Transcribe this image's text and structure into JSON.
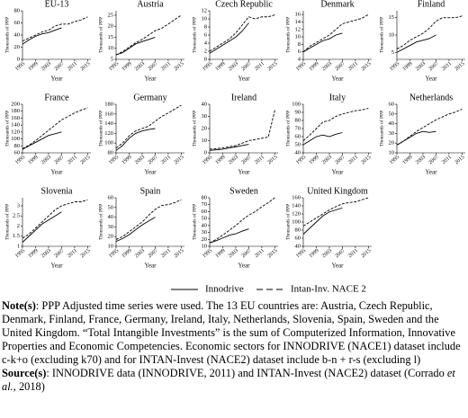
{
  "chart_data": [
    {
      "type": "line",
      "title": "EU-13",
      "ylabel": "Thousands of PPP",
      "xlabel": "Year",
      "x": [
        1995,
        1997,
        1999,
        2001,
        2003,
        2005,
        2007,
        2009,
        2011,
        2013,
        2015
      ],
      "xlim": [
        1995,
        2016
      ],
      "xticks": [
        1995,
        1999,
        2003,
        2007,
        2011,
        2015
      ],
      "ylim": [
        0,
        80
      ],
      "yticks": [
        0,
        20,
        40,
        60,
        80
      ],
      "series": [
        {
          "style": "solid",
          "color": "#000000",
          "values": [
            25,
            32,
            38,
            42,
            44,
            48,
            52,
            null,
            null,
            null,
            null
          ]
        },
        {
          "style": "dashed",
          "color": "#000000",
          "values": [
            30,
            35,
            40,
            45,
            48,
            55,
            58,
            58,
            62,
            65,
            70
          ]
        }
      ]
    },
    {
      "type": "line",
      "title": "Austria",
      "ylabel": "Thousands of PPP",
      "xlabel": "Year",
      "x": [
        1995,
        1997,
        1999,
        2001,
        2003,
        2005,
        2007,
        2009,
        2011,
        2013,
        2015
      ],
      "xlim": [
        1995,
        2016
      ],
      "xticks": [
        1995,
        1999,
        2003,
        2007,
        2011,
        2015
      ],
      "ylim": [
        5,
        27
      ],
      "yticks": [
        5,
        10,
        15,
        20,
        25
      ],
      "series": [
        {
          "style": "solid",
          "color": "#000000",
          "values": [
            7,
            8,
            10,
            12,
            13,
            14,
            15,
            null,
            null,
            null,
            null
          ]
        },
        {
          "style": "dashed",
          "color": "#000000",
          "values": [
            7,
            8.5,
            10.5,
            12.5,
            14,
            16,
            18,
            19,
            21,
            23,
            25
          ]
        }
      ]
    },
    {
      "type": "line",
      "title": "Czech Republic",
      "ylabel": "Thousands of PPP",
      "xlabel": "Year",
      "x": [
        1995,
        1997,
        1999,
        2001,
        2003,
        2005,
        2007,
        2009,
        2011,
        2013,
        2015
      ],
      "xlim": [
        1995,
        2016
      ],
      "xticks": [
        1995,
        1999,
        2003,
        2007,
        2011,
        2015
      ],
      "ylim": [
        0,
        12
      ],
      "yticks": [
        0,
        2,
        4,
        6,
        8,
        10,
        12
      ],
      "series": [
        {
          "style": "solid",
          "color": "#000000",
          "values": [
            1.5,
            2.5,
            3.5,
            4.5,
            5.5,
            7,
            9,
            null,
            null,
            null,
            null
          ]
        },
        {
          "style": "dashed",
          "color": "#000000",
          "values": [
            2,
            3,
            4,
            5,
            6.5,
            8.5,
            10.5,
            10,
            10.5,
            10.5,
            11
          ]
        }
      ]
    },
    {
      "type": "line",
      "title": "Denmark",
      "ylabel": "Thousands of PPP",
      "xlabel": "Year",
      "x": [
        1995,
        1997,
        1999,
        2001,
        2003,
        2005,
        2007,
        2009,
        2011,
        2013,
        2015
      ],
      "xlim": [
        1995,
        2016
      ],
      "xticks": [
        1995,
        1999,
        2003,
        2007,
        2011,
        2015
      ],
      "ylim": [
        4,
        17
      ],
      "yticks": [
        4,
        6,
        8,
        10,
        12,
        14,
        16
      ],
      "series": [
        {
          "style": "solid",
          "color": "#000000",
          "values": [
            6,
            7,
            8,
            9,
            9.5,
            10.5,
            11,
            null,
            null,
            null,
            null
          ]
        },
        {
          "style": "dashed",
          "color": "#000000",
          "values": [
            6,
            7.5,
            8.5,
            9.5,
            10.5,
            12,
            13.5,
            14,
            14.5,
            15,
            16
          ]
        }
      ]
    },
    {
      "type": "line",
      "title": "Finland",
      "ylabel": "Thousands of PPP",
      "xlabel": "Year",
      "x": [
        1995,
        1997,
        1999,
        2001,
        2003,
        2005,
        2007,
        2009,
        2011,
        2013,
        2015
      ],
      "xlim": [
        1995,
        2016
      ],
      "xticks": [
        1995,
        1999,
        2003,
        2007,
        2011,
        2015
      ],
      "ylim": [
        3,
        17
      ],
      "yticks": [
        5,
        10,
        15
      ],
      "series": [
        {
          "style": "solid",
          "color": "#000000",
          "values": [
            5,
            6,
            7,
            8,
            8.5,
            9,
            10,
            null,
            null,
            null,
            null
          ]
        },
        {
          "style": "dashed",
          "color": "#000000",
          "values": [
            6,
            7,
            8.5,
            9.5,
            10.5,
            12,
            14,
            15,
            15,
            15,
            15.5
          ]
        }
      ]
    },
    {
      "type": "line",
      "title": "France",
      "ylabel": "Thousands of PPP",
      "xlabel": "Year",
      "x": [
        1995,
        1997,
        1999,
        2001,
        2003,
        2005,
        2007,
        2009,
        2011,
        2013,
        2015
      ],
      "xlim": [
        1995,
        2016
      ],
      "xticks": [
        1995,
        1999,
        2003,
        2007,
        2011,
        2015
      ],
      "ylim": [
        60,
        200
      ],
      "yticks": [
        60,
        80,
        100,
        120,
        140,
        160,
        180,
        200
      ],
      "series": [
        {
          "style": "solid",
          "color": "#000000",
          "values": [
            70,
            80,
            90,
            100,
            110,
            115,
            120,
            null,
            null,
            null,
            null
          ]
        },
        {
          "style": "dashed",
          "color": "#000000",
          "values": [
            72,
            82,
            95,
            110,
            125,
            140,
            155,
            165,
            175,
            183,
            190
          ]
        }
      ]
    },
    {
      "type": "line",
      "title": "Germany",
      "ylabel": "Thousands of PPP",
      "xlabel": "Year",
      "x": [
        1995,
        1997,
        1999,
        2001,
        2003,
        2005,
        2007,
        2009,
        2011,
        2013,
        2015
      ],
      "xlim": [
        1995,
        2016
      ],
      "xticks": [
        1995,
        1999,
        2003,
        2007,
        2011,
        2015
      ],
      "ylim": [
        80,
        180
      ],
      "yticks": [
        80,
        100,
        120,
        140,
        160,
        180
      ],
      "series": [
        {
          "style": "solid",
          "color": "#000000",
          "values": [
            85,
            95,
            110,
            120,
            125,
            128,
            130,
            null,
            null,
            null,
            null
          ]
        },
        {
          "style": "dashed",
          "color": "#000000",
          "values": [
            90,
            100,
            115,
            125,
            130,
            135,
            145,
            155,
            162,
            170,
            178
          ]
        }
      ]
    },
    {
      "type": "line",
      "title": "Ireland",
      "ylabel": "Thousands of PPP",
      "xlabel": "Year",
      "x": [
        1995,
        1997,
        1999,
        2001,
        2003,
        2005,
        2007,
        2009,
        2011,
        2013,
        2015
      ],
      "xlim": [
        1995,
        2016
      ],
      "xticks": [
        1995,
        1999,
        2003,
        2007,
        2011,
        2015
      ],
      "ylim": [
        0,
        40
      ],
      "yticks": [
        0,
        10,
        20,
        30,
        40
      ],
      "series": [
        {
          "style": "solid",
          "color": "#000000",
          "values": [
            2,
            2.5,
            3,
            4,
            5,
            6,
            7,
            null,
            null,
            null,
            null
          ]
        },
        {
          "style": "dashed",
          "color": "#000000",
          "values": [
            3,
            3.5,
            4,
            5,
            6,
            8,
            10,
            11,
            12,
            13,
            35
          ]
        }
      ]
    },
    {
      "type": "line",
      "title": "Italy",
      "ylabel": "Thousands of PPP",
      "xlabel": "Year",
      "x": [
        1995,
        1997,
        1999,
        2001,
        2003,
        2005,
        2007,
        2009,
        2011,
        2013,
        2015
      ],
      "xlim": [
        1995,
        2016
      ],
      "xticks": [
        1995,
        1999,
        2003,
        2007,
        2011,
        2015
      ],
      "ylim": [
        40,
        100
      ],
      "yticks": [
        40,
        50,
        60,
        70,
        80,
        90,
        100
      ],
      "series": [
        {
          "style": "solid",
          "color": "#000000",
          "values": [
            50,
            55,
            60,
            62,
            60,
            63,
            65,
            null,
            null,
            null,
            null
          ]
        },
        {
          "style": "dashed",
          "color": "#000000",
          "values": [
            55,
            62,
            70,
            78,
            80,
            85,
            88,
            90,
            92,
            93,
            95
          ]
        }
      ]
    },
    {
      "type": "line",
      "title": "Netherlands",
      "ylabel": "Thousands of PPP",
      "xlabel": "Year",
      "x": [
        1995,
        1997,
        1999,
        2001,
        2003,
        2005,
        2007,
        2009,
        2011,
        2013,
        2015
      ],
      "xlim": [
        1995,
        2016
      ],
      "xticks": [
        1995,
        1999,
        2003,
        2007,
        2011,
        2015
      ],
      "ylim": [
        10,
        60
      ],
      "yticks": [
        10,
        20,
        30,
        40,
        50,
        60
      ],
      "series": [
        {
          "style": "solid",
          "color": "#000000",
          "values": [
            18,
            22,
            26,
            30,
            32,
            31,
            32,
            null,
            null,
            null,
            null
          ]
        },
        {
          "style": "dashed",
          "color": "#000000",
          "values": [
            18,
            22,
            27,
            32,
            36,
            40,
            44,
            47,
            50,
            52,
            55
          ]
        }
      ]
    },
    {
      "type": "line",
      "title": "Slovenia",
      "ylabel": "Thousands of PPP",
      "xlabel": "Year",
      "x": [
        1995,
        1997,
        1999,
        2001,
        2003,
        2005,
        2007,
        2009,
        2011,
        2013,
        2015
      ],
      "xlim": [
        1995,
        2016
      ],
      "xticks": [
        1995,
        1999,
        2003,
        2007,
        2011,
        2015
      ],
      "ylim": [
        1,
        3.4
      ],
      "yticks": [
        1,
        1.5,
        2,
        2.5,
        3
      ],
      "series": [
        {
          "style": "solid",
          "color": "#000000",
          "values": [
            1.2,
            1.5,
            1.8,
            2.1,
            2.3,
            2.5,
            2.7,
            null,
            null,
            null,
            null
          ]
        },
        {
          "style": "dashed",
          "color": "#000000",
          "values": [
            1.4,
            1.6,
            1.9,
            2.2,
            2.5,
            2.8,
            3,
            3.1,
            3.2,
            3.2,
            3.3
          ]
        }
      ]
    },
    {
      "type": "line",
      "title": "Spain",
      "ylabel": "Thousands of PPP",
      "xlabel": "Year",
      "x": [
        1995,
        1997,
        1999,
        2001,
        2003,
        2005,
        2007,
        2009,
        2011,
        2013,
        2015
      ],
      "xlim": [
        1995,
        2016
      ],
      "xticks": [
        1995,
        1999,
        2003,
        2007,
        2011,
        2015
      ],
      "ylim": [
        10,
        60
      ],
      "yticks": [
        10,
        20,
        30,
        40,
        50,
        60
      ],
      "series": [
        {
          "style": "solid",
          "color": "#000000",
          "values": [
            15,
            18,
            22,
            27,
            32,
            36,
            40,
            null,
            null,
            null,
            null
          ]
        },
        {
          "style": "dashed",
          "color": "#000000",
          "values": [
            17,
            20,
            25,
            30,
            35,
            42,
            48,
            52,
            53,
            55,
            58
          ]
        }
      ]
    },
    {
      "type": "line",
      "title": "Sweden",
      "ylabel": "Thousands of PPP",
      "xlabel": "Year",
      "x": [
        1995,
        1997,
        1999,
        2001,
        2003,
        2005,
        2007,
        2009,
        2011,
        2013,
        2015
      ],
      "xlim": [
        1995,
        2016
      ],
      "xticks": [
        1995,
        1999,
        2003,
        2007,
        2011,
        2015
      ],
      "ylim": [
        10,
        80
      ],
      "yticks": [
        10,
        20,
        30,
        40,
        50,
        60,
        70,
        80
      ],
      "series": [
        {
          "style": "solid",
          "color": "#000000",
          "values": [
            15,
            18,
            22,
            26,
            28,
            32,
            35,
            null,
            null,
            null,
            null
          ]
        },
        {
          "style": "dashed",
          "color": "#000000",
          "values": [
            15,
            20,
            26,
            33,
            40,
            48,
            55,
            60,
            67,
            73,
            80
          ]
        }
      ]
    },
    {
      "type": "line",
      "title": "United Kingdom",
      "ylabel": "Thousands of PPP",
      "xlabel": "Year",
      "x": [
        1995,
        1997,
        1999,
        2001,
        2003,
        2005,
        2007,
        2009,
        2011,
        2013,
        2015
      ],
      "xlim": [
        1995,
        2016
      ],
      "xticks": [
        1995,
        1999,
        2003,
        2007,
        2011,
        2015
      ],
      "ylim": [
        40,
        160
      ],
      "yticks": [
        40,
        60,
        80,
        100,
        120,
        140,
        160
      ],
      "series": [
        {
          "style": "solid",
          "color": "#000000",
          "values": [
            70,
            85,
            100,
            115,
            125,
            130,
            135,
            null,
            null,
            null,
            null
          ]
        },
        {
          "style": "dashed",
          "color": "#000000",
          "values": [
            90,
            100,
            110,
            120,
            130,
            138,
            145,
            148,
            150,
            155,
            160
          ]
        }
      ]
    }
  ],
  "legend": [
    "Innodrive",
    "Intan-Inv. NACE 2"
  ],
  "note": {
    "label": "Note(s)",
    "text": ": PPP Adjusted time series were used. The 13 EU countries are: Austria, Czech Republic, Denmark, Finland, France, Germany, Ireland, Italy, Netherlands, Slovenia, Spain, Sweden and the United Kingdom. “Total Intangible Investments” is the sum of Computerized Information, Innovative Properties and Economic Competencies. Economic sectors for INNODRIVE (NACE1) dataset include c-k+o (excluding k70) and for INTAN-Invest (NACE2) dataset include b-n + r-s (excluding l)"
  },
  "source": {
    "label": "Source(s)",
    "text": [
      ": INNODRIVE data (INNODRIVE, 2011) and INTAN-Invest (NACE2) dataset (Corrado ",
      "et al.",
      ", 2018)"
    ]
  }
}
